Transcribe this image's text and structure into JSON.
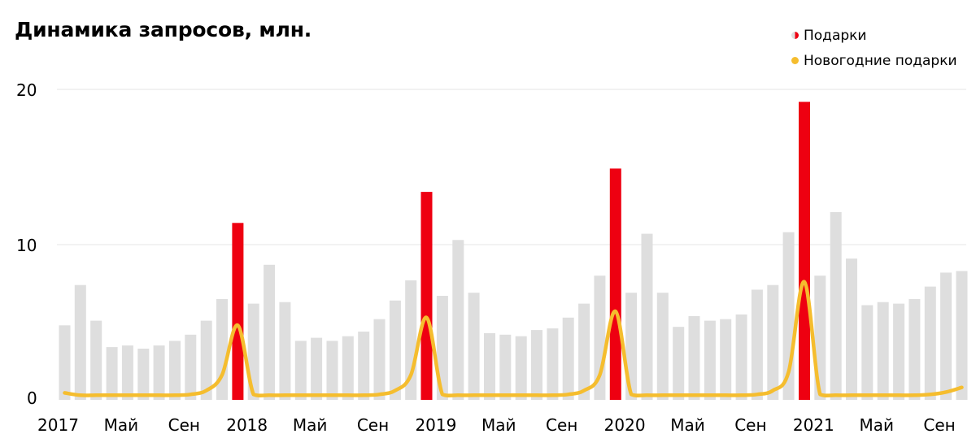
{
  "chart_data": {
    "type": "bar",
    "title": "Динамика запросов, млн.",
    "ylim": [
      0,
      20
    ],
    "y_ticks": [
      "0",
      "10",
      "20"
    ],
    "x_tick_labels": [
      "2017",
      "Май",
      "Сен",
      "2018",
      "Май",
      "Сен",
      "2019",
      "Май",
      "Сен",
      "2020",
      "Май",
      "Сен",
      "2021",
      "Май",
      "Сен"
    ],
    "grid": true,
    "legend_position": "top-right",
    "series": [
      {
        "name": "Подарки",
        "color_regular": "#dedede",
        "color_december": "#ee0011",
        "values": [
          4.8,
          7.4,
          5.1,
          3.4,
          3.5,
          3.3,
          3.5,
          3.8,
          4.2,
          5.1,
          6.5,
          11.4,
          6.2,
          8.7,
          6.3,
          3.8,
          4.0,
          3.8,
          4.1,
          4.4,
          5.2,
          6.4,
          7.7,
          13.4,
          6.7,
          10.3,
          6.9,
          4.3,
          4.2,
          4.1,
          4.5,
          4.6,
          5.3,
          6.2,
          8.0,
          14.9,
          6.9,
          10.7,
          6.9,
          4.7,
          5.4,
          5.1,
          5.2,
          5.5,
          7.1,
          7.4,
          10.8,
          19.2,
          8.0,
          12.1,
          9.1,
          6.1,
          6.3,
          6.2,
          6.5,
          7.3,
          8.2,
          8.3
        ]
      },
      {
        "name": "Новогодние подарки",
        "color": "#f5bd2e",
        "values": [
          0.45,
          0.3,
          0.3,
          0.3,
          0.3,
          0.3,
          0.3,
          0.3,
          0.35,
          0.6,
          1.6,
          4.8,
          0.35,
          0.3,
          0.3,
          0.3,
          0.3,
          0.3,
          0.3,
          0.3,
          0.35,
          0.6,
          1.6,
          5.3,
          0.35,
          0.3,
          0.3,
          0.3,
          0.3,
          0.3,
          0.3,
          0.3,
          0.35,
          0.6,
          1.6,
          5.7,
          0.35,
          0.3,
          0.3,
          0.3,
          0.3,
          0.3,
          0.3,
          0.3,
          0.35,
          0.6,
          1.8,
          7.6,
          0.35,
          0.3,
          0.3,
          0.3,
          0.3,
          0.3,
          0.3,
          0.35,
          0.5,
          0.8
        ]
      }
    ]
  }
}
